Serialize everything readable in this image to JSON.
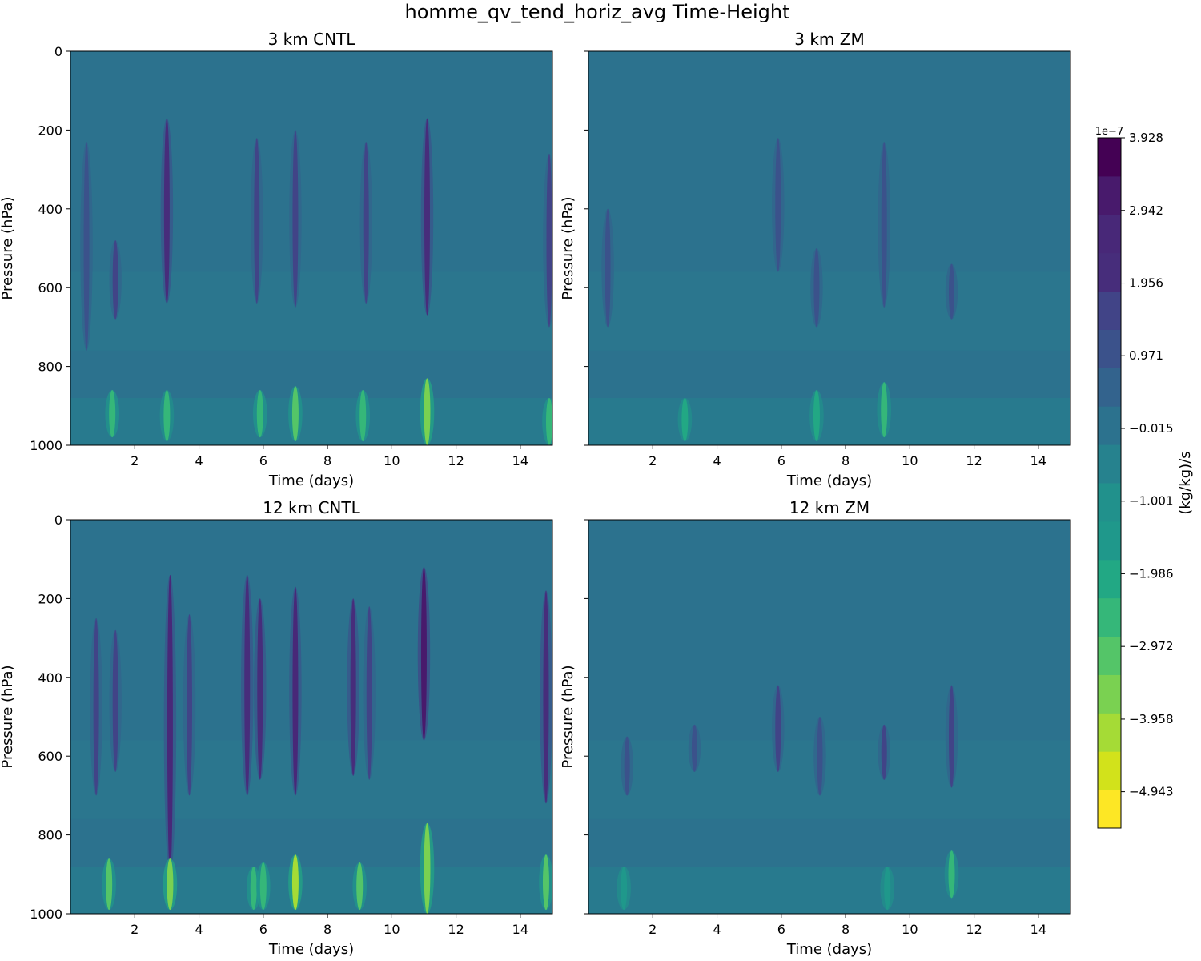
{
  "figure": {
    "title": "homme_qv_tend_horiz_avg Time-Height"
  },
  "chart_data": [
    {
      "type": "heatmap",
      "title": "3 km CNTL",
      "xlabel": "Time (days)",
      "ylabel": "Pressure (hPa)",
      "xlim": [
        0,
        15
      ],
      "ylim": [
        1000,
        0
      ],
      "xticks": [
        2,
        4,
        6,
        8,
        10,
        12,
        14
      ],
      "yticks": [
        0,
        200,
        400,
        600,
        800,
        1000
      ],
      "ytick_labels_visible": true,
      "background_value": 0.0,
      "features": [
        {
          "t": 0.5,
          "p_top": 230,
          "p_bottom": 760,
          "value": 1.2,
          "kind": "moistening"
        },
        {
          "t": 1.4,
          "p_top": 480,
          "p_bottom": 680,
          "value": 1.6,
          "kind": "moistening"
        },
        {
          "t": 3.0,
          "p_top": 170,
          "p_bottom": 640,
          "value": 2.0,
          "kind": "moistening"
        },
        {
          "t": 5.8,
          "p_top": 220,
          "p_bottom": 640,
          "value": 1.5,
          "kind": "moistening"
        },
        {
          "t": 7.0,
          "p_top": 200,
          "p_bottom": 650,
          "value": 1.6,
          "kind": "moistening"
        },
        {
          "t": 9.2,
          "p_top": 230,
          "p_bottom": 640,
          "value": 1.5,
          "kind": "moistening"
        },
        {
          "t": 11.1,
          "p_top": 170,
          "p_bottom": 670,
          "value": 2.2,
          "kind": "moistening"
        },
        {
          "t": 14.9,
          "p_top": 260,
          "p_bottom": 700,
          "value": 1.4,
          "kind": "moistening"
        },
        {
          "t": 1.3,
          "p_top": 860,
          "p_bottom": 980,
          "value": -2.8,
          "kind": "drying"
        },
        {
          "t": 3.0,
          "p_top": 860,
          "p_bottom": 990,
          "value": -2.4,
          "kind": "drying"
        },
        {
          "t": 5.9,
          "p_top": 860,
          "p_bottom": 980,
          "value": -2.8,
          "kind": "drying"
        },
        {
          "t": 7.0,
          "p_top": 850,
          "p_bottom": 990,
          "value": -3.0,
          "kind": "drying"
        },
        {
          "t": 9.1,
          "p_top": 860,
          "p_bottom": 990,
          "value": -2.8,
          "kind": "drying"
        },
        {
          "t": 11.1,
          "p_top": 830,
          "p_bottom": 1000,
          "value": -3.8,
          "kind": "drying"
        },
        {
          "t": 14.9,
          "p_top": 880,
          "p_bottom": 1000,
          "value": -2.6,
          "kind": "drying"
        }
      ]
    },
    {
      "type": "heatmap",
      "title": "3 km ZM",
      "xlabel": "Time (days)",
      "ylabel": "Pressure (hPa)",
      "xlim": [
        0,
        15
      ],
      "ylim": [
        1000,
        0
      ],
      "xticks": [
        2,
        4,
        6,
        8,
        10,
        12,
        14
      ],
      "yticks": [
        0,
        200,
        400,
        600,
        800,
        1000
      ],
      "ytick_labels_visible": false,
      "background_value": 0.0,
      "features": [
        {
          "t": 0.6,
          "p_top": 400,
          "p_bottom": 700,
          "value": 1.0,
          "kind": "moistening"
        },
        {
          "t": 5.9,
          "p_top": 220,
          "p_bottom": 560,
          "value": 1.3,
          "kind": "moistening"
        },
        {
          "t": 7.1,
          "p_top": 500,
          "p_bottom": 700,
          "value": 1.2,
          "kind": "moistening"
        },
        {
          "t": 9.2,
          "p_top": 230,
          "p_bottom": 650,
          "value": 1.3,
          "kind": "moistening"
        },
        {
          "t": 11.3,
          "p_top": 540,
          "p_bottom": 680,
          "value": 1.1,
          "kind": "moistening"
        },
        {
          "t": 9.2,
          "p_top": 840,
          "p_bottom": 980,
          "value": -2.5,
          "kind": "drying"
        },
        {
          "t": 7.1,
          "p_top": 860,
          "p_bottom": 990,
          "value": -2.0,
          "kind": "drying"
        },
        {
          "t": 3.0,
          "p_top": 880,
          "p_bottom": 990,
          "value": -1.8,
          "kind": "drying"
        }
      ]
    },
    {
      "type": "heatmap",
      "title": "12 km CNTL",
      "xlabel": "Time (days)",
      "ylabel": "Pressure (hPa)",
      "xlim": [
        0,
        15
      ],
      "ylim": [
        1000,
        0
      ],
      "xticks": [
        2,
        4,
        6,
        8,
        10,
        12,
        14
      ],
      "yticks": [
        0,
        200,
        400,
        600,
        800,
        1000
      ],
      "ytick_labels_visible": true,
      "background_value": 0.0,
      "features": [
        {
          "t": 0.8,
          "p_top": 250,
          "p_bottom": 700,
          "value": 1.5,
          "kind": "moistening"
        },
        {
          "t": 1.4,
          "p_top": 280,
          "p_bottom": 640,
          "value": 1.6,
          "kind": "moistening"
        },
        {
          "t": 3.1,
          "p_top": 140,
          "p_bottom": 900,
          "value": 2.6,
          "kind": "moistening"
        },
        {
          "t": 3.7,
          "p_top": 240,
          "p_bottom": 700,
          "value": 1.4,
          "kind": "moistening"
        },
        {
          "t": 5.5,
          "p_top": 140,
          "p_bottom": 700,
          "value": 2.2,
          "kind": "moistening"
        },
        {
          "t": 5.9,
          "p_top": 200,
          "p_bottom": 660,
          "value": 2.0,
          "kind": "moistening"
        },
        {
          "t": 7.0,
          "p_top": 170,
          "p_bottom": 700,
          "value": 2.4,
          "kind": "moistening"
        },
        {
          "t": 8.8,
          "p_top": 200,
          "p_bottom": 650,
          "value": 1.9,
          "kind": "moistening"
        },
        {
          "t": 9.3,
          "p_top": 220,
          "p_bottom": 660,
          "value": 1.5,
          "kind": "moistening"
        },
        {
          "t": 11.0,
          "p_top": 120,
          "p_bottom": 560,
          "value": 3.4,
          "kind": "moistening"
        },
        {
          "t": 14.8,
          "p_top": 180,
          "p_bottom": 720,
          "value": 2.0,
          "kind": "moistening"
        },
        {
          "t": 1.2,
          "p_top": 860,
          "p_bottom": 990,
          "value": -3.0,
          "kind": "drying"
        },
        {
          "t": 3.1,
          "p_top": 860,
          "p_bottom": 990,
          "value": -3.6,
          "kind": "drying"
        },
        {
          "t": 5.7,
          "p_top": 880,
          "p_bottom": 990,
          "value": -2.6,
          "kind": "drying"
        },
        {
          "t": 6.0,
          "p_top": 870,
          "p_bottom": 990,
          "value": -2.8,
          "kind": "drying"
        },
        {
          "t": 7.0,
          "p_top": 850,
          "p_bottom": 990,
          "value": -4.0,
          "kind": "drying"
        },
        {
          "t": 9.0,
          "p_top": 870,
          "p_bottom": 990,
          "value": -3.0,
          "kind": "drying"
        },
        {
          "t": 11.1,
          "p_top": 770,
          "p_bottom": 1000,
          "value": -3.6,
          "kind": "drying"
        },
        {
          "t": 14.8,
          "p_top": 850,
          "p_bottom": 990,
          "value": -3.2,
          "kind": "drying"
        }
      ]
    },
    {
      "type": "heatmap",
      "title": "12 km ZM",
      "xlabel": "Time (days)",
      "ylabel": "Pressure (hPa)",
      "xlim": [
        0,
        15
      ],
      "ylim": [
        1000,
        0
      ],
      "xticks": [
        2,
        4,
        6,
        8,
        10,
        12,
        14
      ],
      "yticks": [
        0,
        200,
        400,
        600,
        800,
        1000
      ],
      "ytick_labels_visible": false,
      "background_value": 0.0,
      "features": [
        {
          "t": 1.2,
          "p_top": 550,
          "p_bottom": 700,
          "value": 1.0,
          "kind": "moistening"
        },
        {
          "t": 3.3,
          "p_top": 520,
          "p_bottom": 640,
          "value": 1.1,
          "kind": "moistening"
        },
        {
          "t": 5.9,
          "p_top": 420,
          "p_bottom": 640,
          "value": 1.6,
          "kind": "moistening"
        },
        {
          "t": 7.2,
          "p_top": 500,
          "p_bottom": 700,
          "value": 1.2,
          "kind": "moistening"
        },
        {
          "t": 9.2,
          "p_top": 520,
          "p_bottom": 660,
          "value": 1.5,
          "kind": "moistening"
        },
        {
          "t": 11.3,
          "p_top": 420,
          "p_bottom": 680,
          "value": 1.6,
          "kind": "moistening"
        },
        {
          "t": 11.3,
          "p_top": 840,
          "p_bottom": 960,
          "value": -2.4,
          "kind": "drying"
        },
        {
          "t": 1.1,
          "p_top": 880,
          "p_bottom": 990,
          "value": -1.6,
          "kind": "drying"
        },
        {
          "t": 9.3,
          "p_top": 880,
          "p_bottom": 990,
          "value": -1.6,
          "kind": "drying"
        }
      ]
    }
  ],
  "colorbar": {
    "label": "(kg/kg)/s",
    "offset_text": "1e−7",
    "ticks": [
      "3.928",
      "2.942",
      "1.956",
      "0.971",
      "−0.015",
      "−1.001",
      "−1.986",
      "−2.972",
      "−3.958",
      "−4.943"
    ],
    "tick_values": [
      3.928,
      2.942,
      1.956,
      0.971,
      -0.015,
      -1.001,
      -1.986,
      -2.972,
      -3.958,
      -4.943
    ],
    "vmin": -5.436,
    "vmax": 3.928,
    "levels": 19,
    "colormap": "viridis_r",
    "colors": [
      "#fde725",
      "#d2e21b",
      "#a5db36",
      "#7ad151",
      "#54c568",
      "#35b779",
      "#22a884",
      "#1f988b",
      "#21918c",
      "#26828e",
      "#2c728e",
      "#33638d",
      "#3b528b",
      "#414487",
      "#472d7b",
      "#482878",
      "#481a6c",
      "#440154"
    ]
  },
  "colormap_stops": [
    "#fde725",
    "#b5de2b",
    "#6ece58",
    "#35b779",
    "#1f9e89",
    "#26828e",
    "#31688e",
    "#3e4989",
    "#482878",
    "#440154"
  ]
}
